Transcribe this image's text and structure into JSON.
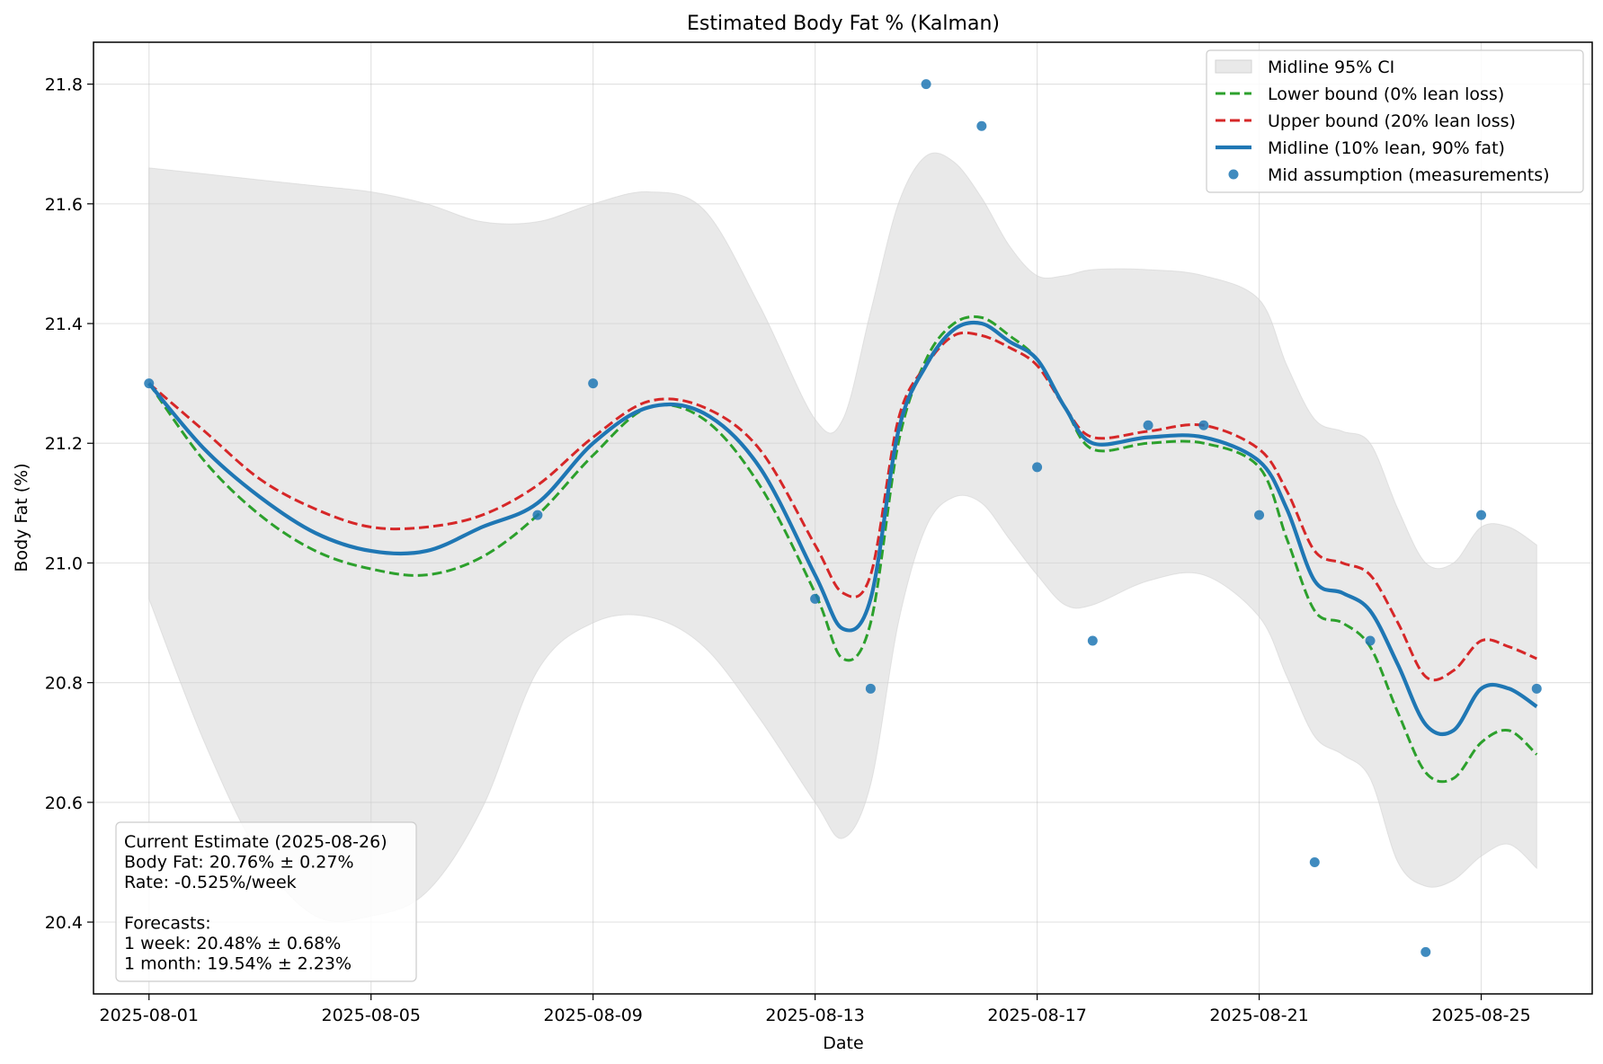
{
  "chart_data": {
    "type": "line",
    "title": "Estimated Body Fat % (Kalman)",
    "xlabel": "Date",
    "ylabel": "Body Fat (%)",
    "xlim": [
      "2025-07-31",
      "2025-08-27"
    ],
    "ylim": [
      20.28,
      21.87
    ],
    "grid": true,
    "legend_position": "top-right",
    "x_ticks": [
      "2025-08-01",
      "2025-08-05",
      "2025-08-09",
      "2025-08-13",
      "2025-08-17",
      "2025-08-21",
      "2025-08-25"
    ],
    "y_ticks": [
      20.4,
      20.6,
      20.8,
      21.0,
      21.2,
      21.4,
      21.6,
      21.8
    ],
    "y_tick_labels": [
      "20.4",
      "20.6",
      "20.8",
      "21.0",
      "21.2",
      "21.4",
      "21.6",
      "21.8"
    ],
    "legend": [
      {
        "label": "Midline 95% CI",
        "kind": "band",
        "color": "#d3d3d3"
      },
      {
        "label": "Lower bound (0% lean loss)",
        "kind": "dashed",
        "color": "#2ca02c"
      },
      {
        "label": "Upper bound (20% lean loss)",
        "kind": "dashed",
        "color": "#d62728"
      },
      {
        "label": "Midline (10% lean, 90% fat)",
        "kind": "solid",
        "color": "#1f77b4"
      },
      {
        "label": "Mid assumption (measurements)",
        "kind": "marker",
        "color": "#1f77b4"
      }
    ],
    "series": [
      {
        "name": "Midline (10% lean, 90% fat)",
        "color": "#1f77b4",
        "style": "solid",
        "x": [
          "2025-08-01",
          "2025-08-02",
          "2025-08-03",
          "2025-08-04",
          "2025-08-05",
          "2025-08-06",
          "2025-08-07",
          "2025-08-08",
          "2025-08-09",
          "2025-08-10",
          "2025-08-11",
          "2025-08-12",
          "2025-08-13",
          "2025-08-13 12:00",
          "2025-08-14",
          "2025-08-14 12:00",
          "2025-08-15",
          "2025-08-15 12:00",
          "2025-08-16",
          "2025-08-16 12:00",
          "2025-08-17",
          "2025-08-17 12:00",
          "2025-08-18",
          "2025-08-19",
          "2025-08-20",
          "2025-08-21",
          "2025-08-21 12:00",
          "2025-08-22",
          "2025-08-22 12:00",
          "2025-08-23",
          "2025-08-23 12:00",
          "2025-08-24",
          "2025-08-24 12:00",
          "2025-08-25",
          "2025-08-25 12:00",
          "2025-08-26"
        ],
        "y": [
          21.3,
          21.19,
          21.11,
          21.05,
          21.02,
          21.02,
          21.06,
          21.1,
          21.2,
          21.26,
          21.25,
          21.16,
          20.98,
          20.89,
          20.94,
          21.22,
          21.33,
          21.39,
          21.4,
          21.37,
          21.34,
          21.26,
          21.2,
          21.21,
          21.21,
          21.17,
          21.09,
          20.97,
          20.95,
          20.92,
          20.83,
          20.73,
          20.72,
          20.79,
          20.79,
          20.76
        ]
      },
      {
        "name": "Lower bound (0% lean loss)",
        "color": "#2ca02c",
        "style": "dashed",
        "x": [
          "2025-08-01",
          "2025-08-02",
          "2025-08-03",
          "2025-08-04",
          "2025-08-05",
          "2025-08-06",
          "2025-08-07",
          "2025-08-08",
          "2025-08-09",
          "2025-08-10",
          "2025-08-11",
          "2025-08-12",
          "2025-08-13",
          "2025-08-13 12:00",
          "2025-08-14",
          "2025-08-14 12:00",
          "2025-08-15",
          "2025-08-15 12:00",
          "2025-08-16",
          "2025-08-16 12:00",
          "2025-08-17",
          "2025-08-17 12:00",
          "2025-08-18",
          "2025-08-19",
          "2025-08-20",
          "2025-08-21",
          "2025-08-21 12:00",
          "2025-08-22",
          "2025-08-22 12:00",
          "2025-08-23",
          "2025-08-23 12:00",
          "2025-08-24",
          "2025-08-24 12:00",
          "2025-08-25",
          "2025-08-25 12:00",
          "2025-08-26"
        ],
        "y": [
          21.3,
          21.17,
          21.08,
          21.02,
          20.99,
          20.98,
          21.01,
          21.08,
          21.18,
          21.26,
          21.24,
          21.13,
          20.95,
          20.84,
          20.9,
          21.2,
          21.34,
          21.4,
          21.41,
          21.38,
          21.34,
          21.26,
          21.19,
          21.2,
          21.2,
          21.16,
          21.04,
          20.92,
          20.9,
          20.86,
          20.75,
          20.65,
          20.64,
          20.7,
          20.72,
          20.68
        ]
      },
      {
        "name": "Upper bound (20% lean loss)",
        "color": "#d62728",
        "style": "dashed",
        "x": [
          "2025-08-01",
          "2025-08-02",
          "2025-08-03",
          "2025-08-04",
          "2025-08-05",
          "2025-08-06",
          "2025-08-07",
          "2025-08-08",
          "2025-08-09",
          "2025-08-10",
          "2025-08-11",
          "2025-08-12",
          "2025-08-13",
          "2025-08-13 12:00",
          "2025-08-14",
          "2025-08-14 12:00",
          "2025-08-15",
          "2025-08-15 12:00",
          "2025-08-16",
          "2025-08-16 12:00",
          "2025-08-17",
          "2025-08-17 12:00",
          "2025-08-18",
          "2025-08-19",
          "2025-08-20",
          "2025-08-21",
          "2025-08-21 12:00",
          "2025-08-22",
          "2025-08-22 12:00",
          "2025-08-23",
          "2025-08-23 12:00",
          "2025-08-24",
          "2025-08-24 12:00",
          "2025-08-25",
          "2025-08-25 12:00",
          "2025-08-26"
        ],
        "y": [
          21.3,
          21.22,
          21.14,
          21.09,
          21.06,
          21.06,
          21.08,
          21.13,
          21.21,
          21.27,
          21.26,
          21.19,
          21.03,
          20.95,
          20.98,
          21.24,
          21.33,
          21.38,
          21.38,
          21.36,
          21.33,
          21.26,
          21.21,
          21.22,
          21.23,
          21.19,
          21.12,
          21.02,
          21.0,
          20.98,
          20.9,
          20.81,
          20.82,
          20.87,
          20.86,
          20.84
        ]
      }
    ],
    "ci_band": {
      "name": "Midline 95% CI",
      "color": "#d3d3d3",
      "x": [
        "2025-08-01",
        "2025-08-02",
        "2025-08-03",
        "2025-08-04",
        "2025-08-05",
        "2025-08-06",
        "2025-08-07",
        "2025-08-08",
        "2025-08-09",
        "2025-08-10",
        "2025-08-11",
        "2025-08-12",
        "2025-08-13",
        "2025-08-13 12:00",
        "2025-08-14",
        "2025-08-14 12:00",
        "2025-08-15",
        "2025-08-15 12:00",
        "2025-08-16",
        "2025-08-16 12:00",
        "2025-08-17",
        "2025-08-17 12:00",
        "2025-08-18",
        "2025-08-19",
        "2025-08-20",
        "2025-08-21",
        "2025-08-21 12:00",
        "2025-08-22",
        "2025-08-22 12:00",
        "2025-08-23",
        "2025-08-23 12:00",
        "2025-08-24",
        "2025-08-24 12:00",
        "2025-08-25",
        "2025-08-25 12:00",
        "2025-08-26"
      ],
      "lower": [
        20.94,
        20.7,
        20.51,
        20.41,
        20.41,
        20.45,
        20.59,
        20.82,
        20.9,
        20.91,
        20.86,
        20.74,
        20.6,
        20.54,
        20.63,
        20.9,
        21.06,
        21.11,
        21.1,
        21.04,
        20.98,
        20.93,
        20.93,
        20.97,
        20.98,
        20.91,
        20.81,
        20.71,
        20.68,
        20.64,
        20.5,
        20.46,
        20.47,
        20.51,
        20.53,
        20.49
      ],
      "upper": [
        21.66,
        21.65,
        21.64,
        21.63,
        21.62,
        21.6,
        21.57,
        21.57,
        21.6,
        21.62,
        21.59,
        21.43,
        21.24,
        21.24,
        21.42,
        21.6,
        21.68,
        21.67,
        21.61,
        21.53,
        21.48,
        21.48,
        21.49,
        21.49,
        21.48,
        21.44,
        21.33,
        21.24,
        21.22,
        21.2,
        21.09,
        21.0,
        21.0,
        21.06,
        21.06,
        21.03
      ]
    },
    "measurements": {
      "name": "Mid assumption (measurements)",
      "color": "#1f77b4",
      "x": [
        "2025-08-01",
        "2025-08-08",
        "2025-08-09",
        "2025-08-13",
        "2025-08-14",
        "2025-08-15",
        "2025-08-16",
        "2025-08-17",
        "2025-08-18",
        "2025-08-19",
        "2025-08-20",
        "2025-08-21",
        "2025-08-22",
        "2025-08-23",
        "2025-08-24",
        "2025-08-25",
        "2025-08-26"
      ],
      "y": [
        21.3,
        21.08,
        21.3,
        20.94,
        20.79,
        21.8,
        21.73,
        21.16,
        20.87,
        21.23,
        21.23,
        21.08,
        20.5,
        20.87,
        20.35,
        21.08,
        20.79
      ]
    },
    "annotation": [
      "Current Estimate (2025-08-26)",
      "Body Fat: 20.76% ± 0.27%",
      "Rate: -0.525%/week",
      "",
      "Forecasts:",
      "1 week: 20.48% ± 0.68%",
      "1 month: 19.54% ± 2.23%"
    ]
  }
}
